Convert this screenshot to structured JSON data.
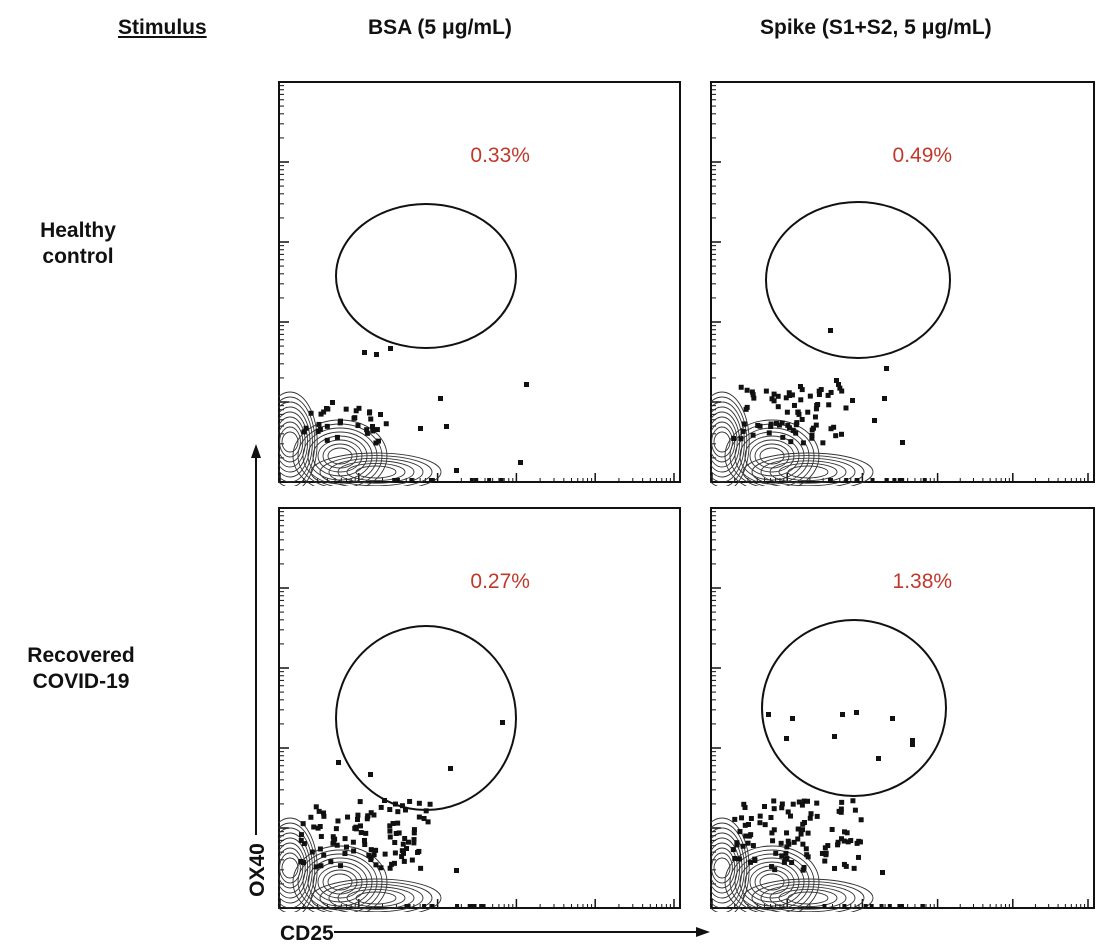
{
  "header": {
    "stimulus_label": "Stimulus",
    "col1": "BSA (5 μg/mL)",
    "col2": "Spike (S1+S2, 5 μg/mL)"
  },
  "rows": {
    "row1": [
      "Healthy",
      "control"
    ],
    "row2": [
      "Recovered",
      "COVID-19"
    ]
  },
  "axes": {
    "x": "CD25",
    "y": "OX40"
  },
  "colors": {
    "percent": "#c0392b",
    "ink": "#111111"
  },
  "chart_data": [
    {
      "type": "scatter",
      "row": "Healthy control",
      "stimulus": "BSA (5 μg/mL)",
      "gate_percent": "0.33%"
    },
    {
      "type": "scatter",
      "row": "Healthy control",
      "stimulus": "Spike (S1+S2, 5 μg/mL)",
      "gate_percent": "0.49%"
    },
    {
      "type": "scatter",
      "row": "Recovered COVID-19",
      "stimulus": "BSA (5 μg/mL)",
      "gate_percent": "0.27%"
    },
    {
      "type": "scatter",
      "row": "Recovered COVID-19",
      "stimulus": "Spike (S1+S2, 5 μg/mL)",
      "gate_percent": "1.38%"
    }
  ]
}
